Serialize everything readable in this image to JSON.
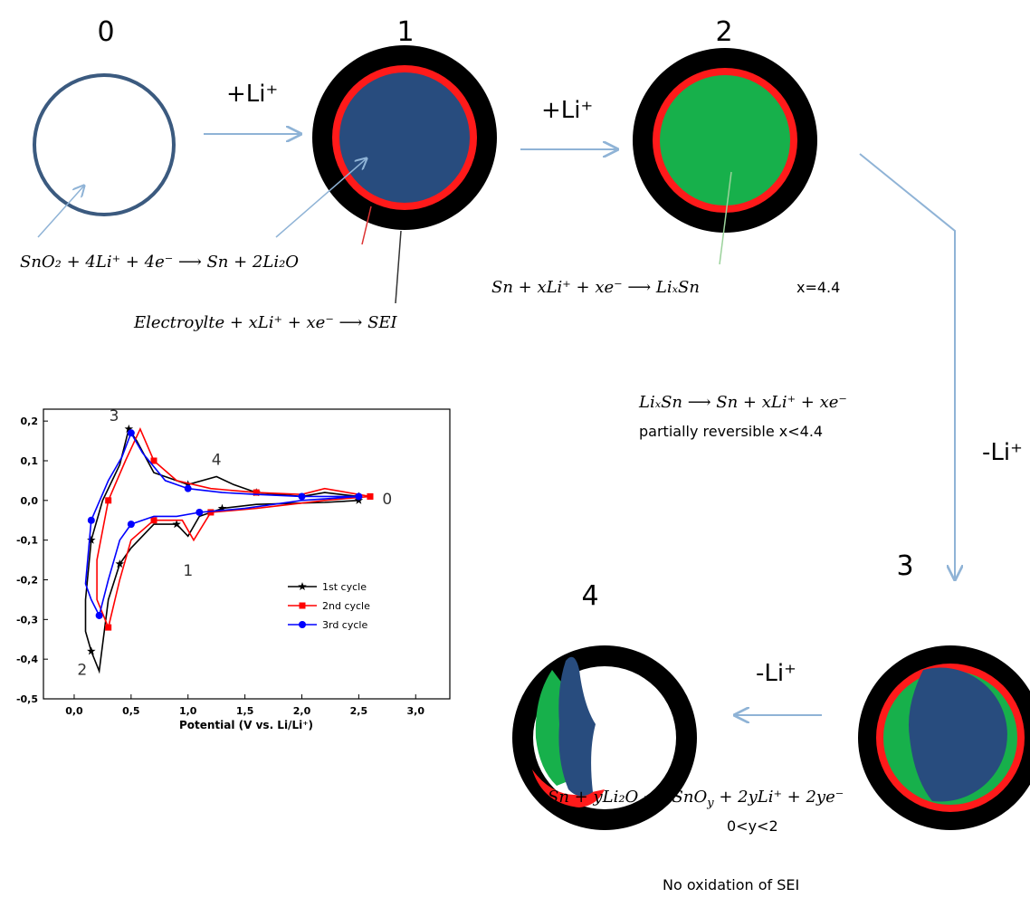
{
  "stages": [
    {
      "label": "0"
    },
    {
      "label": "1"
    },
    {
      "label": "2"
    },
    {
      "label": "3"
    },
    {
      "label": "4"
    }
  ],
  "steps": {
    "lithiation_1": "+Li⁺",
    "lithiation_2": "+Li⁺",
    "delithiation_1": "-Li⁺",
    "delithiation_2": "-Li⁺"
  },
  "equations": {
    "conversion": "SnO₂ + 4Li⁺ + 4e⁻  ⟶  Sn + 2Li₂O",
    "sei": "Electroylte  + xLi⁺ + xe⁻  ⟶  SEI",
    "alloying": "Sn + xLi⁺ + xe⁻  ⟶  LiₓSn",
    "alloying_note": "x=4.4",
    "dealloying": "LiₓSn ⟶ Sn + xLi⁺ + xe⁻",
    "dealloying_note": "partially reversible   x<4.4",
    "oxidation": [
      "Sn + yLi₂O ⟶   SnO",
      "y",
      " + 2yLi⁺ + 2ye⁻"
    ],
    "oxidation_note": "0<y<2",
    "sei_note": "No oxidation of SEI"
  },
  "chart_data": {
    "type": "line",
    "x_label": "Potential (V vs. Li/Li⁺)",
    "xlim": [
      -0.27,
      3.3
    ],
    "ylim": [
      -0.5,
      0.23
    ],
    "xticks": [
      {
        "value": 0,
        "label": "0,0"
      },
      {
        "value": 0.5,
        "label": "0,5"
      },
      {
        "value": 1,
        "label": "1,0"
      },
      {
        "value": 1.5,
        "label": "1,5"
      },
      {
        "value": 2,
        "label": "2,0"
      },
      {
        "value": 2.5,
        "label": "2,5"
      },
      {
        "value": 3,
        "label": "3,0"
      }
    ],
    "yticks": [
      {
        "value": 0.2,
        "label": "0,2"
      },
      {
        "value": 0.1,
        "label": "0,1"
      },
      {
        "value": 0,
        "label": "0,0"
      },
      {
        "value": -0.1,
        "label": "-0,1"
      },
      {
        "value": -0.2,
        "label": "-0,2"
      },
      {
        "value": -0.3,
        "label": "-0,3"
      },
      {
        "value": -0.4,
        "label": "-0,4"
      },
      {
        "value": -0.5,
        "label": "-0,5"
      }
    ],
    "annotations": [
      {
        "text": "3",
        "x": 0.35,
        "y": 0.2
      },
      {
        "text": "4",
        "x": 1.25,
        "y": 0.09
      },
      {
        "text": "1",
        "x": 1.0,
        "y": -0.19
      },
      {
        "text": "2",
        "x": 0.07,
        "y": -0.44
      },
      {
        "text": "0",
        "x": 2.75,
        "y": -0.01
      }
    ],
    "series": [
      {
        "name": "1st cycle",
        "color": "#000000",
        "marker": "star",
        "x": [
          2.5,
          2.2,
          1.6,
          1.3,
          1.1,
          1.0,
          0.9,
          0.7,
          0.5,
          0.4,
          0.3,
          0.22,
          0.15,
          0.1,
          0.1,
          0.15,
          0.25,
          0.4,
          0.48,
          0.55,
          0.7,
          1.0,
          1.25,
          1.4,
          1.6,
          2.0,
          2.2,
          2.5
        ],
        "values": [
          0.0,
          -0.005,
          -0.01,
          -0.02,
          -0.04,
          -0.09,
          -0.06,
          -0.06,
          -0.12,
          -0.16,
          -0.25,
          -0.43,
          -0.38,
          -0.33,
          -0.25,
          -0.1,
          0.0,
          0.09,
          0.18,
          0.15,
          0.07,
          0.04,
          0.06,
          0.04,
          0.02,
          0.01,
          0.02,
          0.01
        ]
      },
      {
        "name": "2nd cycle",
        "color": "#ff0000",
        "marker": "square",
        "x": [
          2.6,
          2.2,
          1.6,
          1.2,
          1.05,
          0.95,
          0.7,
          0.5,
          0.4,
          0.3,
          0.2,
          0.2,
          0.3,
          0.45,
          0.58,
          0.7,
          0.9,
          1.2,
          1.6,
          2.0,
          2.2,
          2.6
        ],
        "values": [
          0.01,
          0.0,
          -0.02,
          -0.03,
          -0.1,
          -0.05,
          -0.05,
          -0.1,
          -0.2,
          -0.32,
          -0.25,
          -0.15,
          0.0,
          0.1,
          0.18,
          0.1,
          0.05,
          0.03,
          0.02,
          0.015,
          0.03,
          0.01
        ]
      },
      {
        "name": "3rd cycle",
        "color": "#0000ff",
        "marker": "circle",
        "x": [
          2.5,
          2.0,
          1.5,
          1.1,
          0.9,
          0.7,
          0.5,
          0.4,
          0.3,
          0.22,
          0.15,
          0.1,
          0.15,
          0.3,
          0.42,
          0.5,
          0.6,
          0.8,
          1.0,
          1.3,
          1.6,
          2.0,
          2.5
        ],
        "values": [
          0.01,
          0.0,
          -0.02,
          -0.03,
          -0.04,
          -0.04,
          -0.06,
          -0.1,
          -0.2,
          -0.29,
          -0.25,
          -0.21,
          -0.05,
          0.05,
          0.11,
          0.17,
          0.12,
          0.05,
          0.03,
          0.02,
          0.015,
          0.01,
          0.01
        ]
      }
    ]
  }
}
